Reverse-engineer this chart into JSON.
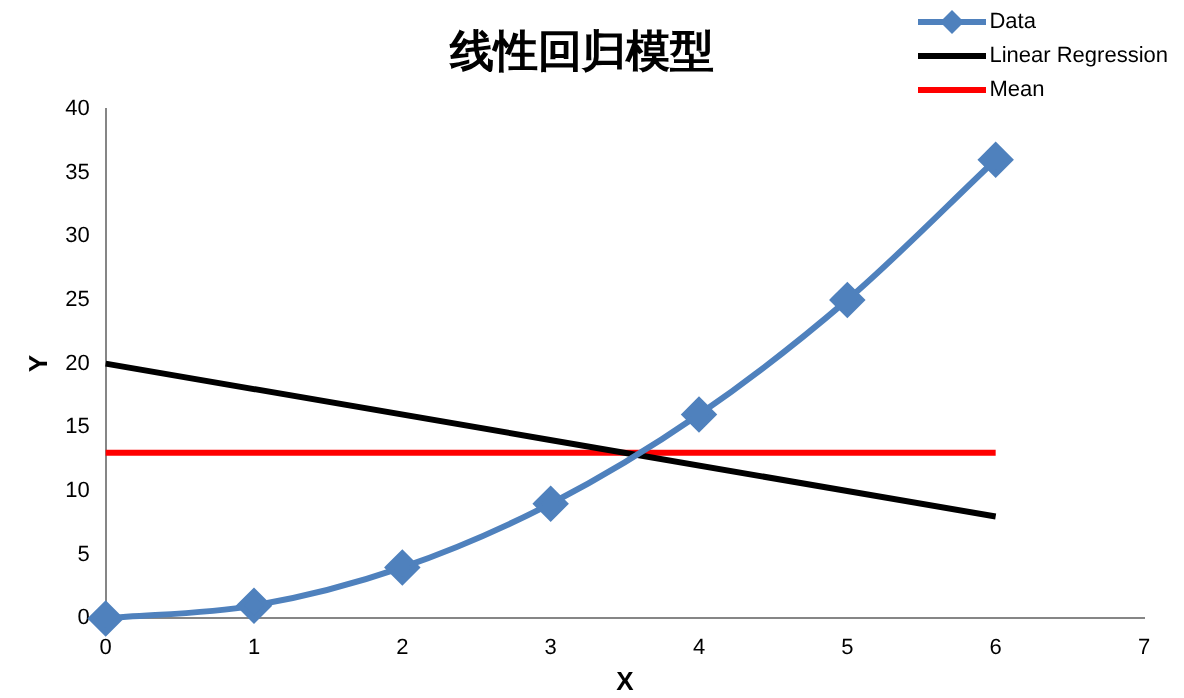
{
  "chart_data": {
    "type": "line",
    "title": "线性回归模型",
    "xlabel": "X",
    "ylabel": "Y",
    "xlim": [
      0,
      7
    ],
    "xticks": [
      0,
      1,
      2,
      3,
      4,
      5,
      6,
      7
    ],
    "ylim": [
      0,
      40
    ],
    "yticks": [
      0,
      5,
      10,
      15,
      20,
      25,
      30,
      35,
      40
    ],
    "grid": false,
    "legend": "top right",
    "marker": "diamond",
    "series": [
      {
        "name": "Data",
        "color": "#4f81bd",
        "x": [
          0,
          1,
          2,
          3,
          4,
          5,
          6
        ],
        "values": [
          0,
          1,
          4,
          9,
          16,
          25,
          36
        ]
      },
      {
        "name": "Linear Regression",
        "color": "#000000",
        "x": [
          0,
          6
        ],
        "values": [
          20,
          8
        ],
        "marker": "none"
      },
      {
        "name": "Mean",
        "color": "#ff0000",
        "x": [
          0,
          6
        ],
        "values": [
          13,
          13
        ],
        "marker": "none"
      }
    ]
  }
}
